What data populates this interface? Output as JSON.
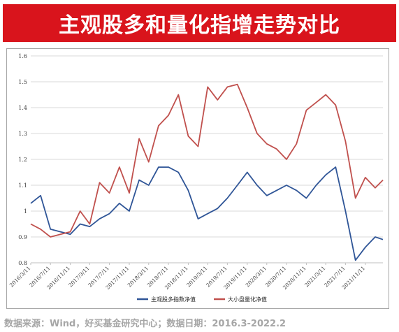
{
  "title": "主观股多和量化指增走势对比",
  "source_note": "数据来源：Wind，好买基金研究中心；数据日期：2016.3-2022.2",
  "colors": {
    "title_bg": "#d9141c",
    "series_blue": "#2f5597",
    "series_red": "#c0504d",
    "grid": "#d9d9d9",
    "frame": "#a6a6a6",
    "footer_text": "#a6a6a6"
  },
  "chart_data": {
    "type": "line",
    "title": "",
    "xlabel": "",
    "ylabel": "",
    "ylim": [
      0.8,
      1.6
    ],
    "yticks": [
      "0.8",
      "0.9",
      "1",
      "1.1",
      "1.2",
      "1.3",
      "1.4",
      "1.5",
      "1.6"
    ],
    "grid": "horizontal",
    "legend_position": "bottom",
    "xticks": [
      "2016/3/11",
      "2016/7/11",
      "2016/11/11",
      "2017/3/11",
      "2017/7/11",
      "2017/11/11",
      "2018/3/11",
      "2018/7/11",
      "2018/11/11",
      "2019/3/11",
      "2019/7/11",
      "2019/11/11",
      "2020/3/11",
      "2020/7/11",
      "2020/11/11",
      "2021/3/11",
      "2021/7/11",
      "2021/11/11"
    ],
    "x": [
      "2016/3/11",
      "2016/5/11",
      "2016/7/11",
      "2016/9/11",
      "2016/11/11",
      "2017/1/11",
      "2017/3/11",
      "2017/5/11",
      "2017/7/11",
      "2017/9/11",
      "2017/11/11",
      "2018/1/11",
      "2018/3/11",
      "2018/5/11",
      "2018/7/11",
      "2018/9/11",
      "2018/11/11",
      "2019/1/11",
      "2019/3/11",
      "2019/5/11",
      "2019/7/11",
      "2019/9/11",
      "2019/11/11",
      "2020/1/11",
      "2020/3/11",
      "2020/5/11",
      "2020/7/11",
      "2020/9/11",
      "2020/11/11",
      "2021/1/11",
      "2021/3/11",
      "2021/5/11",
      "2021/7/11",
      "2021/9/11",
      "2021/11/11",
      "2022/1/11",
      "2022/2/28"
    ],
    "series": [
      {
        "name": "主观股多指数净值",
        "color": "#2f5597",
        "values": [
          1.03,
          1.06,
          0.93,
          0.92,
          0.91,
          0.95,
          0.94,
          0.97,
          0.99,
          1.03,
          1.0,
          1.12,
          1.1,
          1.17,
          1.17,
          1.15,
          1.08,
          0.97,
          0.99,
          1.01,
          1.05,
          1.1,
          1.15,
          1.1,
          1.06,
          1.08,
          1.1,
          1.08,
          1.05,
          1.1,
          1.14,
          1.17,
          1.0,
          0.81,
          0.86,
          0.9,
          0.89
        ]
      },
      {
        "name": "大小盘量化净值",
        "color": "#c0504d",
        "values": [
          0.95,
          0.93,
          0.9,
          0.91,
          0.92,
          1.0,
          0.95,
          1.11,
          1.07,
          1.17,
          1.07,
          1.28,
          1.19,
          1.33,
          1.37,
          1.45,
          1.29,
          1.25,
          1.48,
          1.43,
          1.48,
          1.49,
          1.4,
          1.3,
          1.26,
          1.24,
          1.2,
          1.26,
          1.39,
          1.42,
          1.45,
          1.41,
          1.27,
          1.05,
          1.13,
          1.09,
          1.12
        ]
      }
    ]
  }
}
